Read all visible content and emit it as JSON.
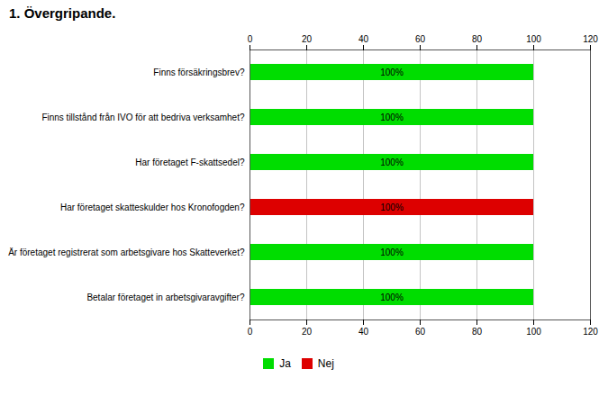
{
  "chart_data": {
    "type": "bar",
    "orientation": "horizontal",
    "title": "1. Övergripande.",
    "categories": [
      "Betalar företaget in arbetsgivaravgifter?",
      "Är företaget registrerat som arbetsgivare hos Skatteverket?",
      "Har företaget skatteskulder hos Kronofogden?",
      "Har företaget F-skattsedel?",
      "Finns tillstånd från IVO för att bedriva verksamhet?",
      "Finns försäkringsbrev?"
    ],
    "series": [
      {
        "name": "Ja",
        "color": "#00dd00",
        "values": [
          100,
          100,
          0,
          100,
          100,
          100
        ],
        "value_labels": [
          "100%",
          "100%",
          null,
          "100%",
          "100%",
          "100%"
        ]
      },
      {
        "name": "Nej",
        "color": "#dd0000",
        "values": [
          0,
          0,
          100,
          0,
          0,
          0
        ],
        "value_labels": [
          null,
          null,
          "100%",
          null,
          null,
          null
        ]
      }
    ],
    "xlim": [
      0,
      120
    ],
    "xticks": [
      0,
      20,
      40,
      60,
      80,
      100,
      120
    ],
    "grid": true,
    "legend": "bottom",
    "data_labels": true
  }
}
